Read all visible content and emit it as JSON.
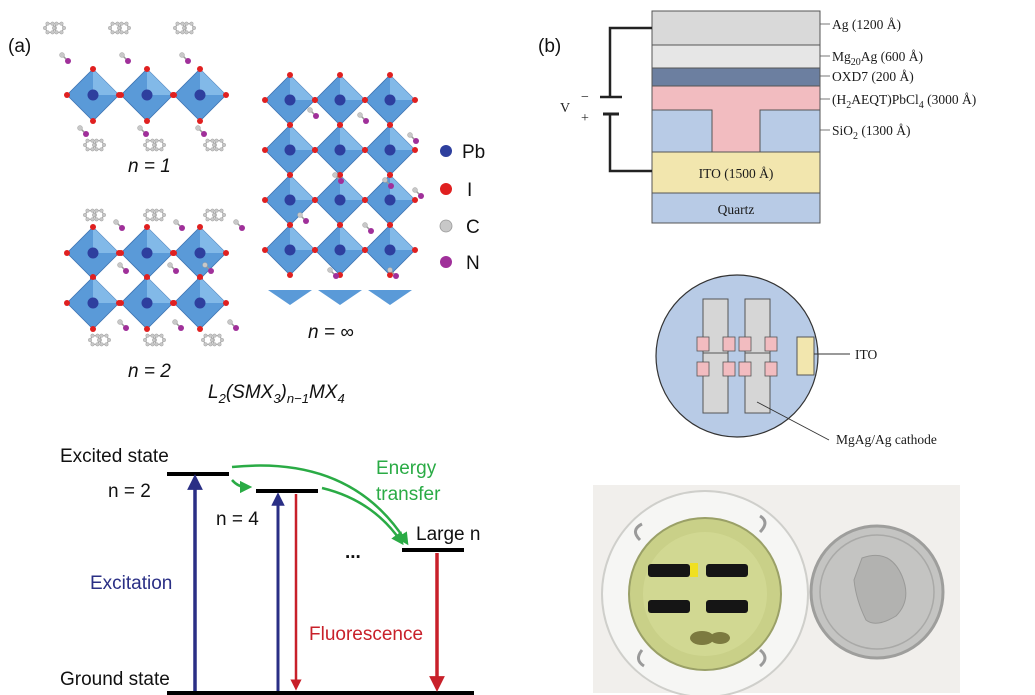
{
  "panels": {
    "a": "(a)",
    "b": "(b)"
  },
  "structures": {
    "n1": "n = 1",
    "n2": "n = 2",
    "ninf": "n = ∞",
    "formula": {
      "L": "L",
      "L_sub": "2",
      "SMX": "(SMX",
      "SMX_sub": "3",
      "close": ")",
      "n_sub": "n−1",
      "MX": "MX",
      "MX_sub": "4"
    },
    "legend": [
      {
        "label": "Pb",
        "color": "#2e3f9e"
      },
      {
        "label": "I",
        "color": "#e02020"
      },
      {
        "label": "C",
        "color": "#c8c8c8"
      },
      {
        "label": "N",
        "color": "#a0309a"
      }
    ],
    "colors": {
      "octahedron": "#5a9ad8",
      "octahedron_light": "#8cc0ec"
    }
  },
  "energy_diagram": {
    "excited_state": "Excited state",
    "n2": "n = 2",
    "n4": "n = 4",
    "dots": "...",
    "large_n": "Large n",
    "energy_transfer_1": "Energy",
    "energy_transfer_2": "transfer",
    "excitation": "Excitation",
    "fluorescence": "Fluorescence",
    "ground_state": "Ground state",
    "colors": {
      "excitation": "#2a2f85",
      "fluorescence": "#c8202a",
      "transfer": "#2aab45"
    }
  },
  "device_stack": {
    "voltage": "V",
    "minus": "−",
    "plus": "+",
    "layers": {
      "ag": "Ag (1200 Å)",
      "mgag_pre": "Mg",
      "mgag_sub": "20",
      "mgag_post": "Ag (600 Å)",
      "oxd7": "OXD7 (200 Å)",
      "pero_pre": "(H",
      "pero_sub1": "2",
      "pero_mid": "AEQT)PbCl",
      "pero_sub2": "4",
      "pero_post": " (3000 Å)",
      "sio2_pre": "SiO",
      "sio2_sub": "2",
      "sio2_post": "  (1300 Å)",
      "ito": "ITO (1500 Å)",
      "quartz": "Quartz"
    },
    "colors": {
      "ag": "#d9d9d9",
      "mgag": "#e4e4e4",
      "oxd7": "#6c7fa0",
      "pero": "#f2bcc0",
      "sio2": "#b8cbe6",
      "ito": "#f2e6ae",
      "quartz": "#b8cbe6"
    }
  },
  "device_top": {
    "ito": "ITO",
    "cathode": "MgAg/Ag cathode"
  }
}
